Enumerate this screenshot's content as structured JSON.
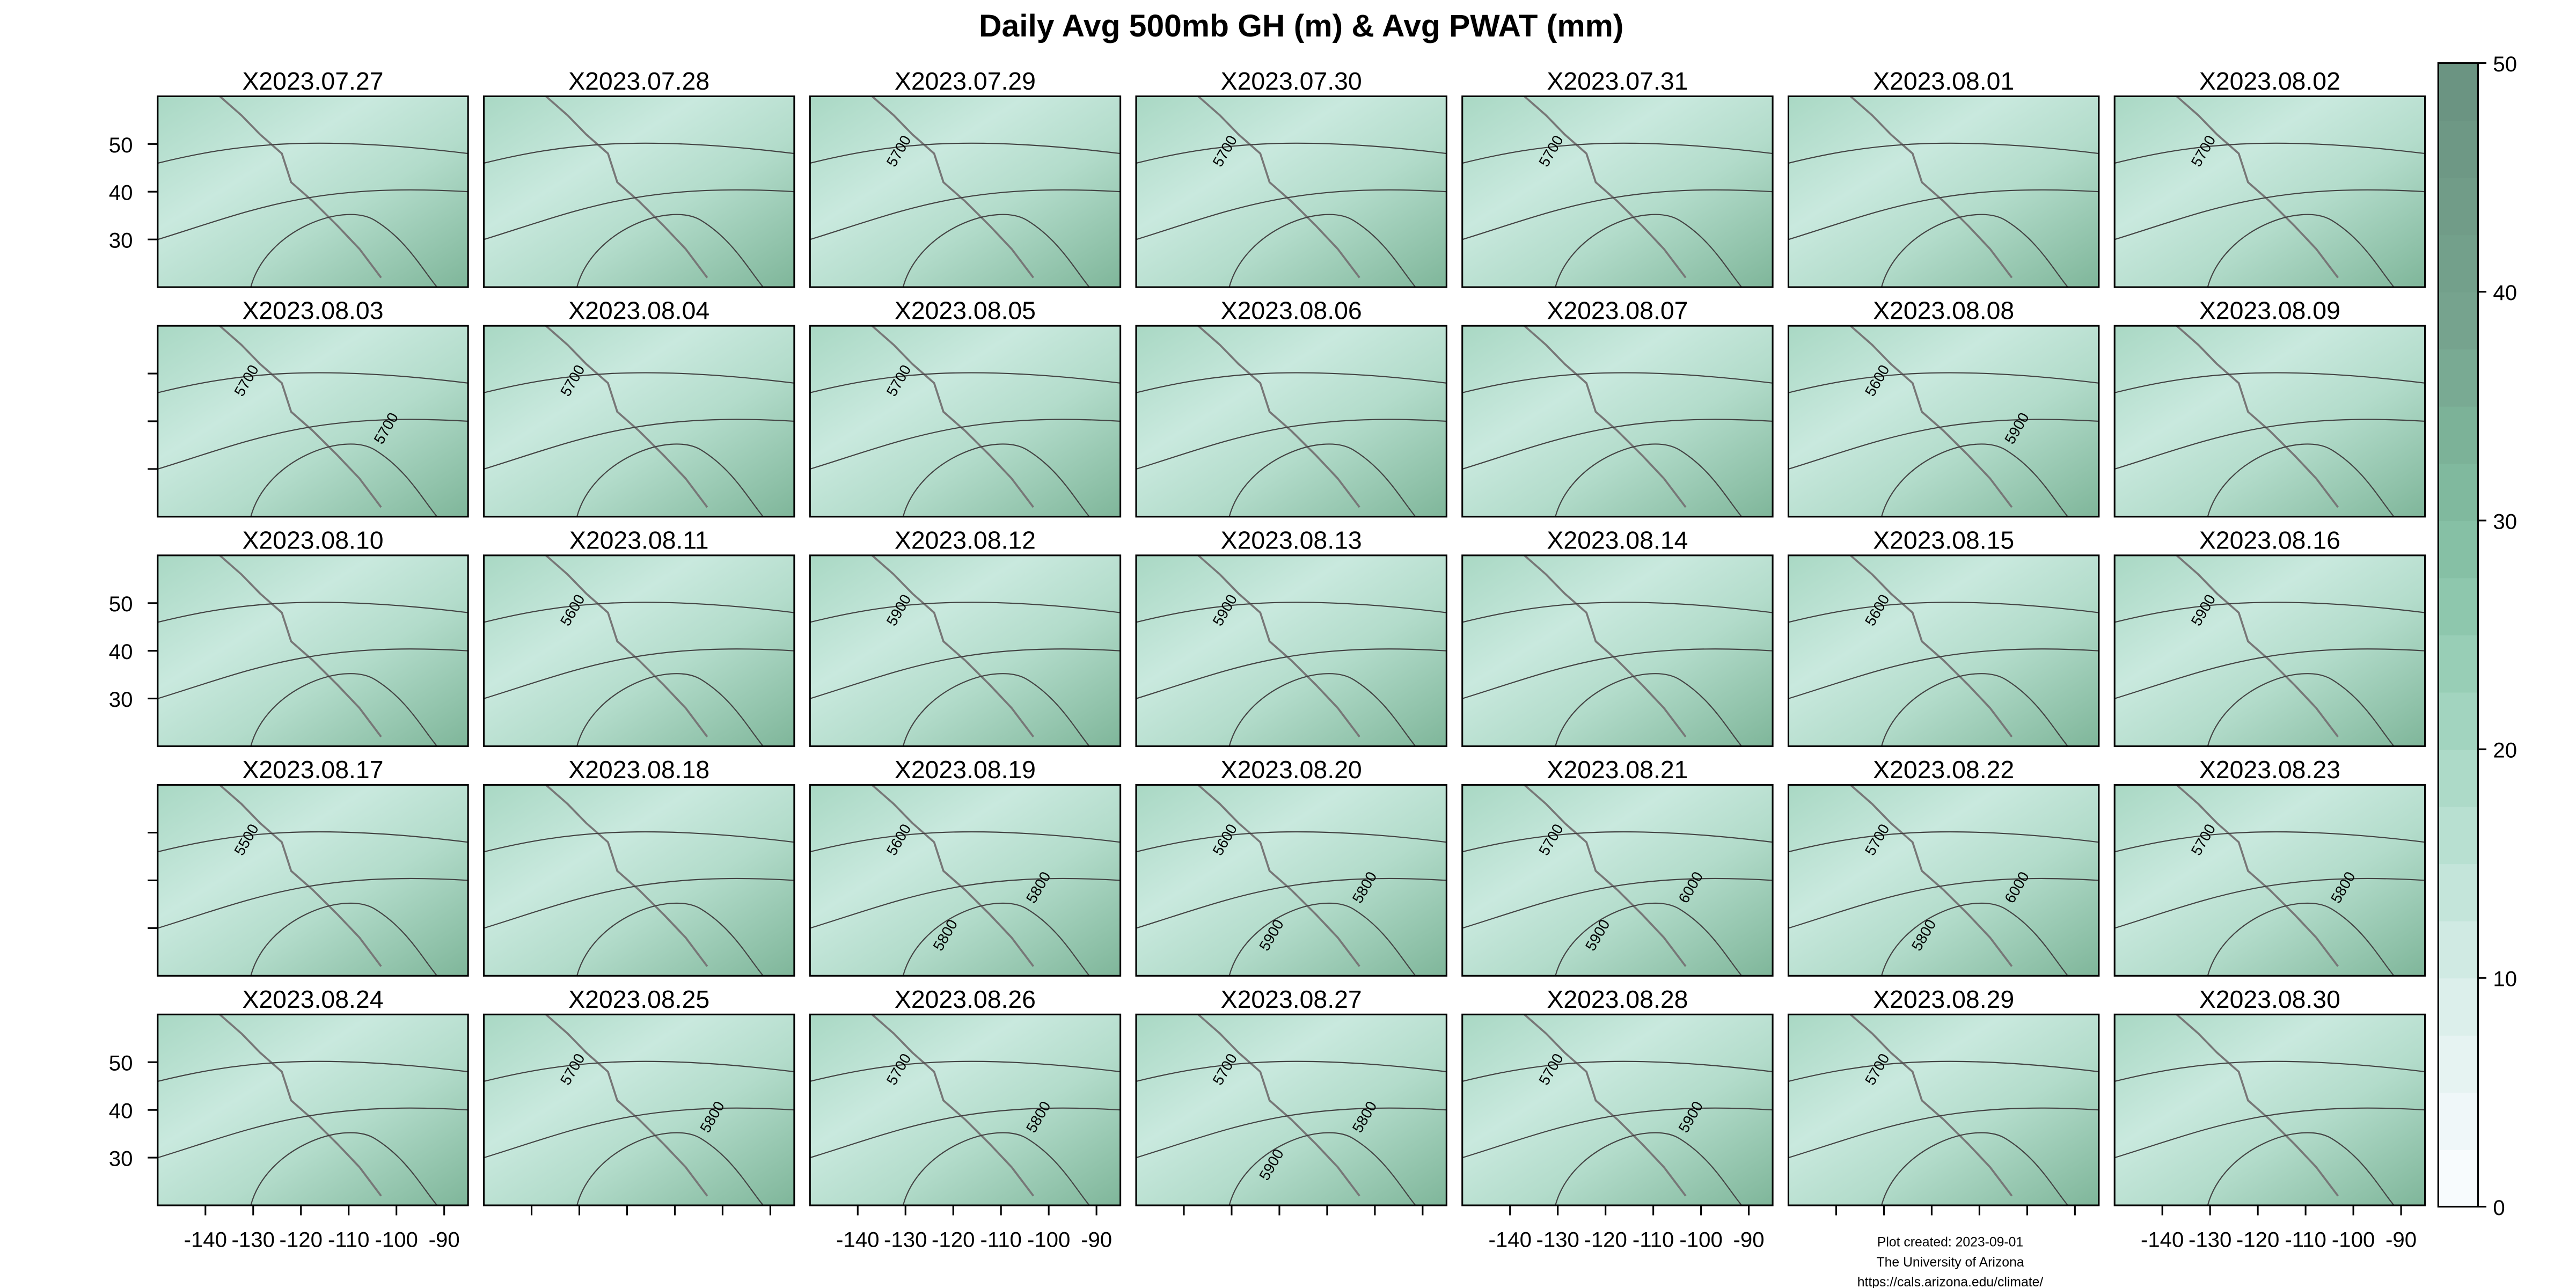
{
  "chart_data": {
    "type": "map_grid",
    "title": "Daily Avg 500mb GH (m) & Avg PWAT (mm)",
    "panels": [
      {
        "title": "X2023.07.27",
        "contour_labels": []
      },
      {
        "title": "X2023.07.28",
        "contour_labels": []
      },
      {
        "title": "X2023.07.29",
        "contour_labels": [
          5700
        ]
      },
      {
        "title": "X2023.07.30",
        "contour_labels": [
          5700
        ]
      },
      {
        "title": "X2023.07.31",
        "contour_labels": [
          5700
        ]
      },
      {
        "title": "X2023.08.01",
        "contour_labels": []
      },
      {
        "title": "X2023.08.02",
        "contour_labels": [
          5700
        ]
      },
      {
        "title": "X2023.08.03",
        "contour_labels": [
          5700,
          5700
        ]
      },
      {
        "title": "X2023.08.04",
        "contour_labels": [
          5700
        ]
      },
      {
        "title": "X2023.08.05",
        "contour_labels": [
          5700
        ]
      },
      {
        "title": "X2023.08.06",
        "contour_labels": []
      },
      {
        "title": "X2023.08.07",
        "contour_labels": []
      },
      {
        "title": "X2023.08.08",
        "contour_labels": [
          5600,
          5900
        ]
      },
      {
        "title": "X2023.08.09",
        "contour_labels": []
      },
      {
        "title": "X2023.08.10",
        "contour_labels": []
      },
      {
        "title": "X2023.08.11",
        "contour_labels": [
          5600
        ]
      },
      {
        "title": "X2023.08.12",
        "contour_labels": [
          5900
        ]
      },
      {
        "title": "X2023.08.13",
        "contour_labels": [
          5900
        ]
      },
      {
        "title": "X2023.08.14",
        "contour_labels": []
      },
      {
        "title": "X2023.08.15",
        "contour_labels": [
          5600
        ]
      },
      {
        "title": "X2023.08.16",
        "contour_labels": [
          5900
        ]
      },
      {
        "title": "X2023.08.17",
        "contour_labels": [
          5500
        ]
      },
      {
        "title": "X2023.08.18",
        "contour_labels": []
      },
      {
        "title": "X2023.08.19",
        "contour_labels": [
          5600,
          5800,
          5800
        ]
      },
      {
        "title": "X2023.08.20",
        "contour_labels": [
          5600,
          5800,
          5900
        ]
      },
      {
        "title": "X2023.08.21",
        "contour_labels": [
          5700,
          6000,
          5900
        ]
      },
      {
        "title": "X2023.08.22",
        "contour_labels": [
          5700,
          6000,
          5800
        ]
      },
      {
        "title": "X2023.08.23",
        "contour_labels": [
          5700,
          5800
        ]
      },
      {
        "title": "X2023.08.24",
        "contour_labels": []
      },
      {
        "title": "X2023.08.25",
        "contour_labels": [
          5700,
          5800
        ]
      },
      {
        "title": "X2023.08.26",
        "contour_labels": [
          5700,
          5800
        ]
      },
      {
        "title": "X2023.08.27",
        "contour_labels": [
          5700,
          5800,
          5900
        ]
      },
      {
        "title": "X2023.08.28",
        "contour_labels": [
          5700,
          5900
        ]
      },
      {
        "title": "X2023.08.29",
        "contour_labels": [
          5700
        ]
      },
      {
        "title": "X2023.08.30",
        "contour_labels": []
      }
    ],
    "xlim": [
      -150,
      -85
    ],
    "xticks": [
      -140,
      -130,
      -120,
      -110,
      -100,
      -90
    ],
    "ylim": [
      20,
      60
    ],
    "yticks": [
      30,
      40,
      50
    ],
    "colorbar": {
      "lim": [
        0,
        50
      ],
      "ticks": [
        0,
        10,
        20,
        30,
        40,
        50
      ],
      "colors": [
        "#f7fbfd",
        "#eff7f9",
        "#e6f3f2",
        "#dcefeb",
        "#d0eae3",
        "#c4e5da",
        "#b8e0d1",
        "#addac8",
        "#a2d4bf",
        "#98ceb6",
        "#8ec7ad",
        "#86c0a5",
        "#80b99e",
        "#7cb298",
        "#79aa93",
        "#76a38e",
        "#73a08b",
        "#719c88",
        "#6e9885",
        "#6b9482"
      ]
    }
  },
  "footer": [
    "Plot created: 2023-09-01",
    "The University of Arizona",
    "https://cals.arizona.edu/climate/"
  ]
}
